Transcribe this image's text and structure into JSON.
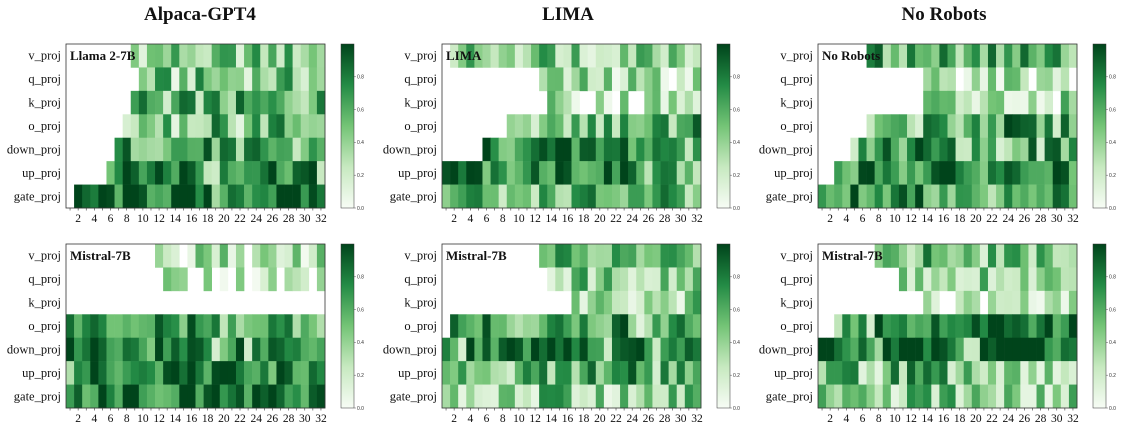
{
  "column_titles": [
    "Alpaca-GPT4",
    "LIMA",
    "No Robots"
  ],
  "chart_data": {
    "type": "heatmap",
    "rows": [
      "v_proj",
      "q_proj",
      "k_proj",
      "o_proj",
      "down_proj",
      "up_proj",
      "gate_proj"
    ],
    "x_tick_labels": [
      "2",
      "4",
      "6",
      "8",
      "10",
      "12",
      "14",
      "16",
      "18",
      "20",
      "22",
      "24",
      "26",
      "28",
      "30",
      "32"
    ],
    "n_layers": 32,
    "colorbar_ticks": [
      "0.0",
      "0.2",
      "0.4",
      "0.6",
      "0.8"
    ],
    "colormap": [
      "#f7fcf5",
      "#c7e9c0",
      "#74c476",
      "#238b45",
      "#00441b"
    ],
    "panels": [
      {
        "label": "Llama 2-7B",
        "dataset": "Alpaca-GPT4",
        "start": [
          9,
          10,
          9,
          8,
          7,
          6,
          2
        ],
        "level": [
          0.45,
          0.45,
          0.55,
          0.55,
          0.65,
          0.85,
          0.85
        ]
      },
      {
        "label": "LIMA",
        "dataset": "LIMA",
        "start": [
          2,
          13,
          14,
          9,
          6,
          1,
          1
        ],
        "level": [
          0.5,
          0.3,
          0.3,
          0.7,
          0.75,
          0.8,
          0.55
        ]
      },
      {
        "label": "No Robots",
        "dataset": "No Robots",
        "start": [
          7,
          14,
          14,
          7,
          5,
          3,
          1
        ],
        "level": [
          0.6,
          0.3,
          0.35,
          0.7,
          0.7,
          0.75,
          0.7
        ]
      },
      {
        "label": "Mistral-7B",
        "dataset": "Alpaca-GPT4",
        "start": [
          12,
          12,
          99,
          1,
          1,
          1,
          1
        ],
        "level": [
          0.3,
          0.2,
          0,
          0.65,
          0.8,
          0.8,
          0.85
        ]
      },
      {
        "label": "Mistral-7B",
        "dataset": "LIMA",
        "start": [
          13,
          14,
          17,
          2,
          1,
          1,
          1
        ],
        "level": [
          0.5,
          0.45,
          0.4,
          0.65,
          0.9,
          0.6,
          0.45
        ]
      },
      {
        "label": "Mistral-7B",
        "dataset": "No Robots",
        "start": [
          8,
          11,
          14,
          3,
          1,
          1,
          1
        ],
        "level": [
          0.55,
          0.35,
          0.2,
          0.85,
          0.95,
          0.55,
          0.4
        ]
      }
    ]
  }
}
